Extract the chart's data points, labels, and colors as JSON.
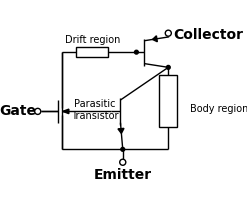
{
  "bg_color": "#ffffff",
  "line_color": "#000000",
  "text_color": "#000000",
  "labels": {
    "gate": "Gate",
    "collector": "Collector",
    "emitter": "Emitter",
    "drift": "Drift region",
    "parasitic": "Parasitic\nTransistor",
    "body": "Body region"
  },
  "figsize": [
    2.47,
    2.04
  ],
  "dpi": 100
}
